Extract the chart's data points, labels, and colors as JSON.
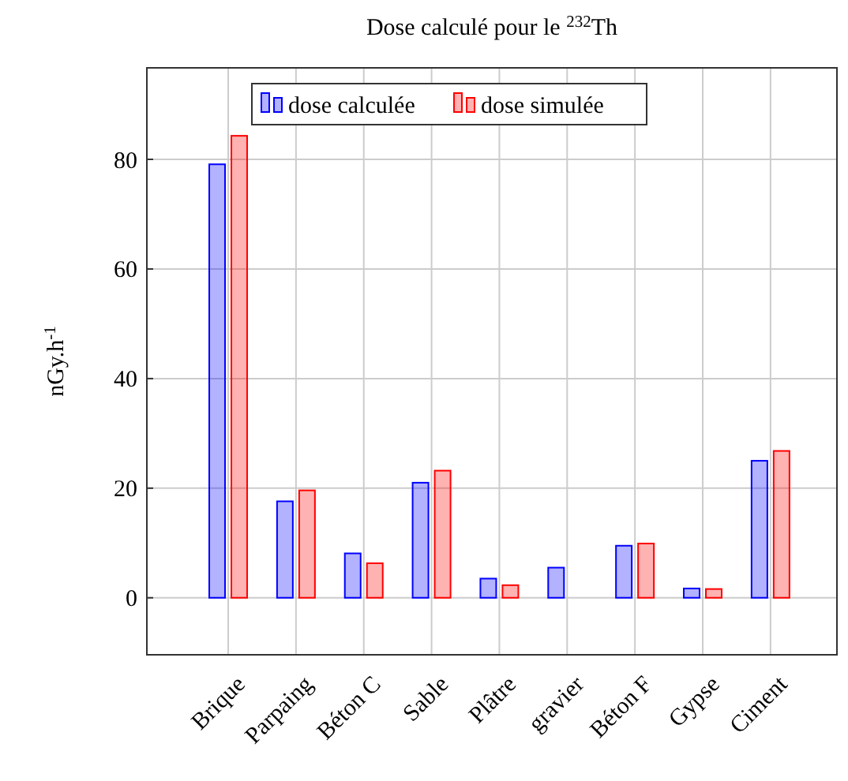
{
  "chart_data": {
    "type": "bar",
    "title": "Dose calculé pour le $^{232}$Th",
    "ylabel": "nGy.h$^{-1}$",
    "categories": [
      "Brique",
      "Parpaing",
      "Béton C",
      "Sable",
      "Plâtre",
      "gravier",
      "Béton F",
      "Gypse",
      "Ciment"
    ],
    "series": [
      {
        "name": "dose calculée",
        "color": "#0000ff",
        "values": [
          79.1,
          17.6,
          8.1,
          21,
          3.5,
          5.5,
          9.5,
          1.7,
          25
        ]
      },
      {
        "name": "dose simulée",
        "color": "#ff0000",
        "values": [
          84.3,
          19.6,
          6.3,
          23.2,
          2.3,
          null,
          9.9,
          1.6,
          26.8
        ]
      }
    ],
    "ylim": [
      -10.4,
      96.7
    ],
    "yticks": [
      0,
      20,
      40,
      60,
      80
    ],
    "grid": true,
    "legend": "top"
  }
}
